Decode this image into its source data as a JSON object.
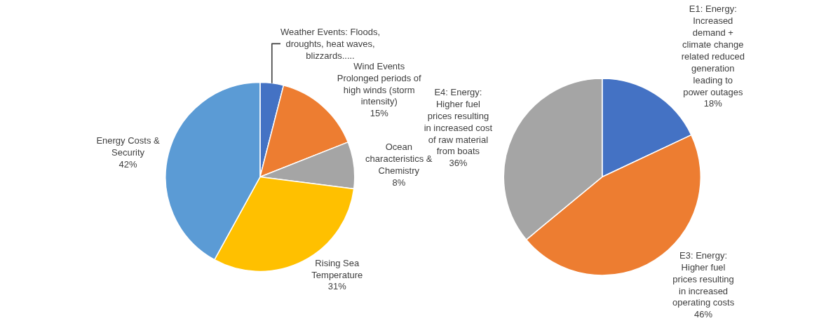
{
  "chart_data": [
    {
      "type": "pie",
      "categories": [
        "Weather Events: Floods,\ndroughts, heat waves,\nblizzards.....",
        "Wind Events\nProlonged periods of\nhigh winds (storm\nintensity)",
        "Ocean\ncharacteristics &\nChemistry",
        "Rising Sea\nTemperature",
        "Energy Costs &\nSecurity"
      ],
      "values": [
        4,
        15,
        8,
        31,
        42
      ],
      "value_labels": [
        null,
        "15%",
        "8%",
        "31%",
        "42%"
      ],
      "colors": [
        "#4472c4",
        "#ed7d31",
        "#a5a5a5",
        "#ffc000",
        "#5b9bd5"
      ]
    },
    {
      "type": "pie",
      "categories": [
        "E1: Energy:\nIncreased\ndemand +\nclimate change\nrelated reduced\ngeneration\nleading to\npower outages",
        "E3: Energy:\nHigher fuel\nprices resulting\nin increased\noperating costs",
        "E4: Energy:\nHigher fuel\nprices resulting\nin increased cost\nof raw material\nfrom boats"
      ],
      "values": [
        18,
        46,
        36
      ],
      "value_labels": [
        "18%",
        "46%",
        "36%"
      ],
      "colors": [
        "#4472c4",
        "#ed7d31",
        "#a5a5a5"
      ]
    }
  ]
}
